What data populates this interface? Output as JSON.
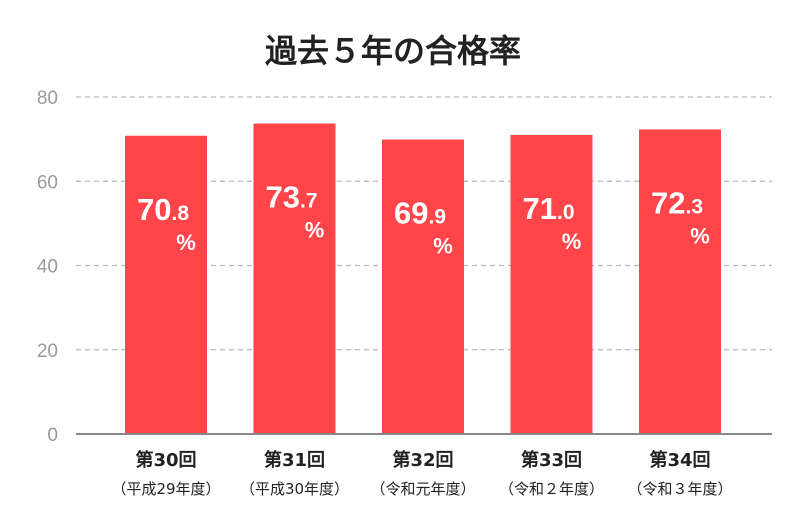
{
  "chart_data": {
    "type": "bar",
    "title": "過去５年の合格率",
    "xlabel": "",
    "ylabel": "",
    "ylim": [
      0,
      80
    ],
    "yticks": [
      0,
      20,
      40,
      60,
      80
    ],
    "grid": true,
    "unit": "%",
    "bar_color": "#ff454a",
    "categories": [
      {
        "main": "第30回",
        "sub": "（平成29年度）"
      },
      {
        "main": "第31回",
        "sub": "（平成30年度）"
      },
      {
        "main": "第32回",
        "sub": "（令和元年度）"
      },
      {
        "main": "第33回",
        "sub": "（令和２年度）"
      },
      {
        "main": "第34回",
        "sub": "（令和３年度）"
      }
    ],
    "values": [
      70.8,
      73.7,
      69.9,
      71.0,
      72.3
    ]
  }
}
